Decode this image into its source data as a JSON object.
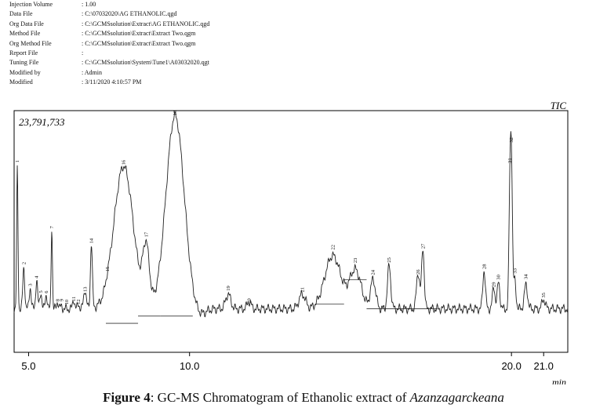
{
  "header": {
    "rows": [
      {
        "label": "Injection Volume",
        "value": ": 1.00"
      },
      {
        "label": "Data File",
        "value": ": C:\\07032020\\AG ETHANOLIC.qgd"
      },
      {
        "label": "Org Data File",
        "value": ": C:\\GCMSsolution\\Extract\\AG ETHANOLIC.qgd"
      },
      {
        "label": "Method File",
        "value": ": C:\\GCMSsolution\\Extract\\Extract Two.qgm"
      },
      {
        "label": "Org Method File",
        "value": ": C:\\GCMSsolution\\Extract\\Extract Two.qgm"
      },
      {
        "label": "Report File",
        "value": ":"
      },
      {
        "label": "Tuning File",
        "value": ": C:\\GCMSsolution\\System\\Tune1\\A03032020.qgt"
      },
      {
        "label": "Modified by",
        "value": ": Admin"
      },
      {
        "label": "Modified",
        "value": ": 3/11/2020 4:10:57 PM"
      }
    ]
  },
  "caption": {
    "label": "Figure 4",
    "text": ": GC-MS Chromatogram of Ethanolic extract of ",
    "species": "Azanzagarckeana"
  },
  "chart_data": {
    "type": "line",
    "signal_label": "TIC",
    "max_intensity_label": "23,791,733",
    "x_unit": "min",
    "xlim": [
      4.55,
      21.75
    ],
    "ylim": [
      0,
      23791733
    ],
    "x_ticks": [
      {
        "value": 5.0,
        "label": "5.0"
      },
      {
        "value": 10.0,
        "label": "10.0"
      },
      {
        "value": 20.0,
        "label": "20.0"
      },
      {
        "value": 21.0,
        "label": "21.0"
      }
    ],
    "baseline_fraction": 0.18,
    "peaks": [
      {
        "label": "1",
        "rt": 4.65,
        "height": 0.76,
        "width": 0.02
      },
      {
        "label": "2",
        "rt": 4.85,
        "height": 0.35,
        "width": 0.03
      },
      {
        "label": "3",
        "rt": 5.05,
        "height": 0.27,
        "width": 0.03
      },
      {
        "label": "4",
        "rt": 5.25,
        "height": 0.3,
        "width": 0.03
      },
      {
        "label": "5",
        "rt": 5.38,
        "height": 0.25,
        "width": 0.03
      },
      {
        "label": "6",
        "rt": 5.55,
        "height": 0.24,
        "width": 0.03
      },
      {
        "label": "7",
        "rt": 5.72,
        "height": 0.52,
        "width": 0.02
      },
      {
        "label": "8",
        "rt": 5.9,
        "height": 0.21,
        "width": 0.03
      },
      {
        "label": "9",
        "rt": 6.02,
        "height": 0.19,
        "width": 0.03
      },
      {
        "label": "10",
        "rt": 6.18,
        "height": 0.18,
        "width": 0.03
      },
      {
        "label": "11",
        "rt": 6.4,
        "height": 0.22,
        "width": 0.03
      },
      {
        "label": "12",
        "rt": 6.55,
        "height": 0.2,
        "width": 0.03
      },
      {
        "label": "13",
        "rt": 6.75,
        "height": 0.26,
        "width": 0.04
      },
      {
        "label": "14",
        "rt": 6.95,
        "height": 0.45,
        "width": 0.03
      },
      {
        "label": "15",
        "rt": 7.45,
        "height": 0.19,
        "width": 0.04
      },
      {
        "label": "16",
        "rt": 7.95,
        "height": 0.77,
        "width": 0.3
      },
      {
        "label": "17",
        "rt": 8.65,
        "height": 0.42,
        "width": 0.1
      },
      {
        "label": "18",
        "rt": 9.55,
        "height": 0.98,
        "width": 0.28
      },
      {
        "label": "19",
        "rt": 11.2,
        "height": 0.24,
        "width": 0.08
      },
      {
        "label": "20",
        "rt": 11.85,
        "height": 0.21,
        "width": 0.06
      },
      {
        "label": "21",
        "rt": 13.5,
        "height": 0.24,
        "width": 0.1
      },
      {
        "label": "22",
        "rt": 14.45,
        "height": 0.4,
        "width": 0.25
      },
      {
        "label": "23",
        "rt": 15.15,
        "height": 0.34,
        "width": 0.18
      },
      {
        "label": "24",
        "rt": 15.7,
        "height": 0.3,
        "width": 0.08
      },
      {
        "label": "25",
        "rt": 16.2,
        "height": 0.36,
        "width": 0.05
      },
      {
        "label": "26",
        "rt": 17.1,
        "height": 0.33,
        "width": 0.05
      },
      {
        "label": "27",
        "rt": 17.25,
        "height": 0.43,
        "width": 0.04
      },
      {
        "label": "28",
        "rt": 19.15,
        "height": 0.34,
        "width": 0.04
      },
      {
        "label": "29",
        "rt": 19.45,
        "height": 0.27,
        "width": 0.04
      },
      {
        "label": "30",
        "rt": 19.6,
        "height": 0.29,
        "width": 0.04
      },
      {
        "label": "31",
        "rt": 19.95,
        "height": 0.63,
        "width": 0.03
      },
      {
        "label": "32",
        "rt": 20.0,
        "height": 0.76,
        "width": 0.03
      },
      {
        "label": "33",
        "rt": 20.1,
        "height": 0.3,
        "width": 0.04
      },
      {
        "label": "34",
        "rt": 20.45,
        "height": 0.28,
        "width": 0.05
      },
      {
        "label": "35",
        "rt": 21.0,
        "height": 0.22,
        "width": 0.05
      }
    ]
  }
}
